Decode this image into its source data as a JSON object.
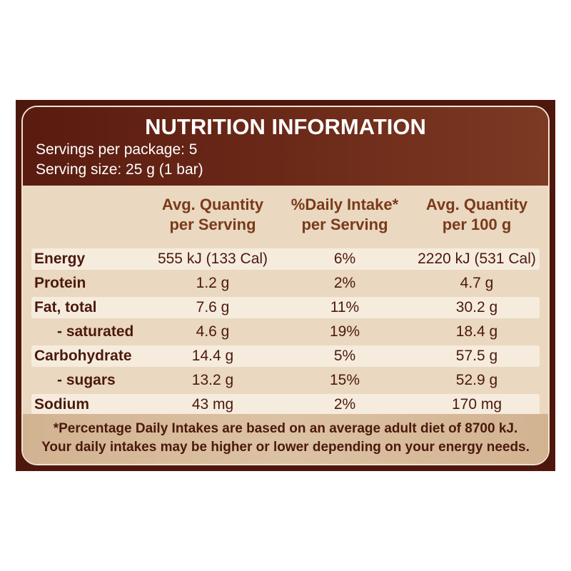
{
  "header": {
    "title": "NUTRITION INFORMATION",
    "servings": "Servings per package: 5",
    "serving_size": "Serving size: 25 g (1 bar)"
  },
  "table": {
    "columns": [
      [
        "Avg. Quantity",
        "per Serving"
      ],
      [
        "%Daily Intake*",
        "per Serving"
      ],
      [
        "Avg. Quantity",
        "per 100 g"
      ]
    ],
    "rows": [
      [
        "Energy",
        "555 kJ (133 Cal)",
        "6%",
        "2220 kJ (531 Cal)"
      ],
      [
        "Protein",
        "1.2 g",
        "2%",
        "4.7 g"
      ],
      [
        "Fat, total",
        "7.6 g",
        "11%",
        "30.2 g"
      ],
      [
        "- saturated",
        "4.6 g",
        "19%",
        "18.4 g"
      ],
      [
        "Carbohydrate",
        "14.4 g",
        "5%",
        "57.5 g"
      ],
      [
        "- sugars",
        "13.2 g",
        "15%",
        "52.9 g"
      ],
      [
        "Sodium",
        "43 mg",
        "2%",
        "170 mg"
      ]
    ]
  },
  "footnote": [
    "*Percentage Daily Intakes are based on an average adult diet of 8700 kJ.",
    "Your daily intakes may be higher or lower depending on your energy needs."
  ]
}
